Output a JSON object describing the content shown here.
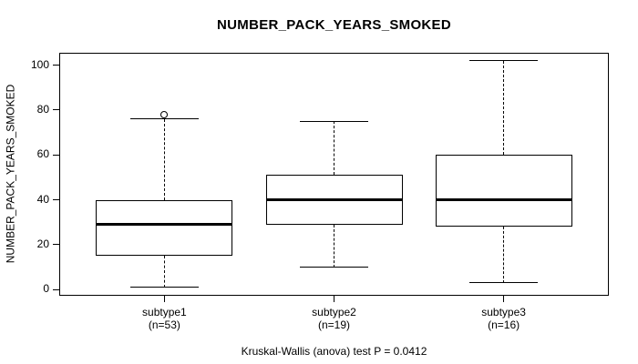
{
  "chart_data": {
    "type": "boxplot",
    "title": "NUMBER_PACK_YEARS_SMOKED",
    "ylabel": "NUMBER_PACK_YEARS_SMOKED",
    "xlabel": "",
    "footer": "Kruskal-Wallis (anova) test P = 0.0412",
    "yticks": [
      0,
      20,
      40,
      60,
      80,
      100
    ],
    "ylim": [
      0,
      100
    ],
    "y_range": [
      -2.7,
      105.5
    ],
    "grid": false,
    "legend": null,
    "groups": [
      {
        "label": "subtype1",
        "sublabel": "(n=53)",
        "n": 53,
        "lower_whisker": 1,
        "q1": 15,
        "median": 29,
        "q3": 40,
        "upper_whisker": 76,
        "outliers": [
          78
        ]
      },
      {
        "label": "subtype2",
        "sublabel": "(n=19)",
        "n": 19,
        "lower_whisker": 10,
        "q1": 29,
        "median": 40,
        "q3": 51,
        "upper_whisker": 75,
        "outliers": []
      },
      {
        "label": "subtype3",
        "sublabel": "(n=16)",
        "n": 16,
        "lower_whisker": 3,
        "q1": 28,
        "median": 40,
        "q3": 60,
        "upper_whisker": 102,
        "outliers": []
      }
    ]
  },
  "colors": {
    "line": "#000000",
    "box_fill": "#ffffff",
    "background": "#ffffff"
  }
}
